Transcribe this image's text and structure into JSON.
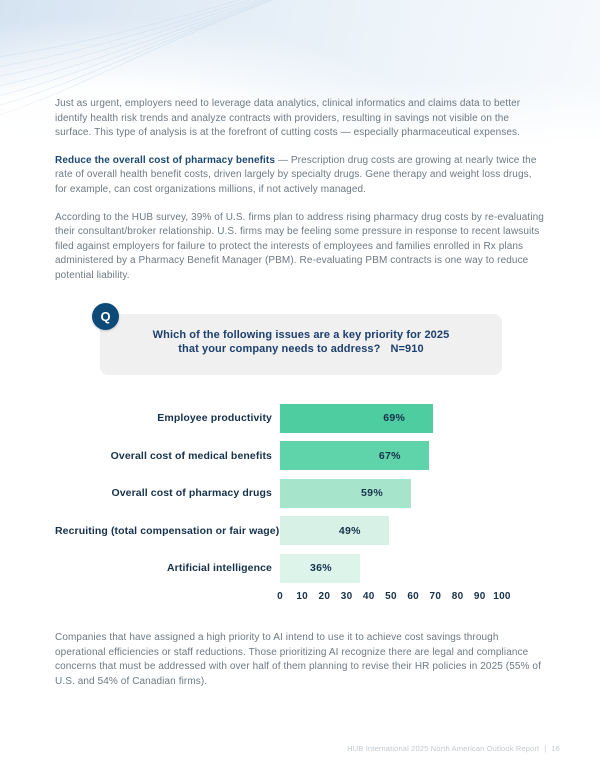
{
  "content": {
    "p1": "Just as urgent, employers need to leverage data analytics, clinical informatics and claims data to better identify health risk trends and analyze contracts with providers, resulting in savings not visible on the surface. This type of analysis is at the forefront of cutting costs — especially pharmaceutical expenses.",
    "p2_lead": "Reduce the overall cost of pharmacy benefits",
    "p2_rest": " — Prescription drug costs are growing at nearly twice the rate of overall health benefit costs, driven largely by specialty drugs. Gene therapy and weight loss drugs, for example, can cost organizations millions, if not actively managed.",
    "p3": "According to the HUB survey, 39% of U.S. firms plan to address rising pharmacy drug costs by re-evaluating their consultant/broker relationship. U.S. firms may be feeling some pressure in response to recent lawsuits filed against employers for failure to protect the interests of employees and families enrolled in Rx plans administered by a Pharmacy Benefit Manager (PBM). Re-evaluating PBM contracts is one way to reduce potential liability.",
    "p4": "Companies that have assigned a high priority to AI intend to use it to achieve cost savings through operational efficiencies or staff reductions. Those prioritizing AI recognize there are legal and compliance concerns that must be addressed with over half of them planning to revise their HR policies in 2025 (55% of U.S. and 54% of Canadian firms)."
  },
  "question": {
    "badge": "Q",
    "line1": "Which of the following issues are a key priority for 2025",
    "line2": "that your company needs to address?",
    "n_label": "N=910"
  },
  "chart_data": {
    "type": "bar",
    "orientation": "horizontal",
    "title": "Which of the following issues are a key priority for 2025 that your company needs to address? N=910",
    "categories": [
      "Employee productivity",
      "Overall cost of medical benefits",
      "Overall cost of pharmacy drugs",
      "Recruiting (total compensation or fair wage)",
      "Artificial intelligence"
    ],
    "values": [
      69,
      67,
      59,
      49,
      36
    ],
    "value_labels": [
      "69%",
      "67%",
      "59%",
      "49%",
      "36%"
    ],
    "bar_colors": [
      "#4dcda0",
      "#5fd3a9",
      "#a6e4cc",
      "#d7f1e6",
      "#dcf4ea"
    ],
    "xlim": [
      0,
      100
    ],
    "x_ticks": [
      0,
      10,
      20,
      30,
      40,
      50,
      60,
      70,
      80,
      90,
      100
    ],
    "grid": false,
    "legend": false
  },
  "footer": {
    "report_title": "HUB International 2025 North American Outlook Report",
    "separator": "|",
    "page_number": "16"
  },
  "colors": {
    "badge_navy": "#0e4a78",
    "heading_blue": "#1c4971",
    "question_blue": "#1c3f6e",
    "chart_text_navy": "#16314b",
    "body_gray": "#6e7983",
    "question_box_bg": "#f0f0f1",
    "header_gradient_blue": "#d5e3f1"
  }
}
